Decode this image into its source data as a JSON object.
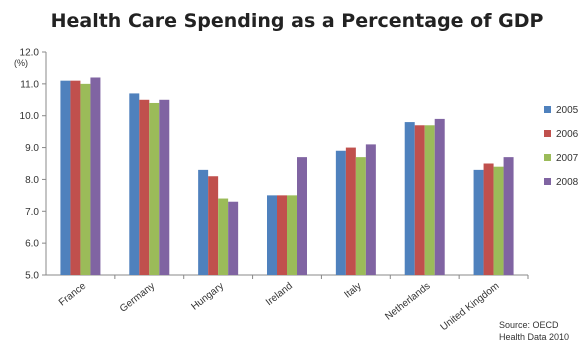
{
  "chart_data": {
    "type": "bar",
    "title": "Health Care Spending as a Percentage of GDP",
    "unit_label": "(%)",
    "categories": [
      "France",
      "Germany",
      "Hungary",
      "Ireland",
      "Italy",
      "Netherlands",
      "United Kingdom"
    ],
    "series": [
      {
        "name": "2005",
        "color": "#4f81bd",
        "values": [
          11.1,
          10.7,
          8.3,
          7.5,
          8.9,
          9.8,
          8.3
        ]
      },
      {
        "name": "2006",
        "color": "#c0504d",
        "values": [
          11.1,
          10.5,
          8.1,
          7.5,
          9.0,
          9.7,
          8.5
        ]
      },
      {
        "name": "2007",
        "color": "#9bbb59",
        "values": [
          11.0,
          10.4,
          7.4,
          7.5,
          8.7,
          9.7,
          8.4
        ]
      },
      {
        "name": "2008",
        "color": "#8064a2",
        "values": [
          11.2,
          10.5,
          7.3,
          8.7,
          9.1,
          9.9,
          8.7
        ]
      }
    ],
    "ylim": [
      5.0,
      12.0
    ],
    "yticks": [
      "5.0",
      "6.0",
      "7.0",
      "8.0",
      "9.0",
      "10.0",
      "11.0",
      "12.0"
    ],
    "grid": false,
    "legend_position": "right",
    "source_lines": [
      "Source: OECD",
      "Health Data 2010"
    ]
  }
}
